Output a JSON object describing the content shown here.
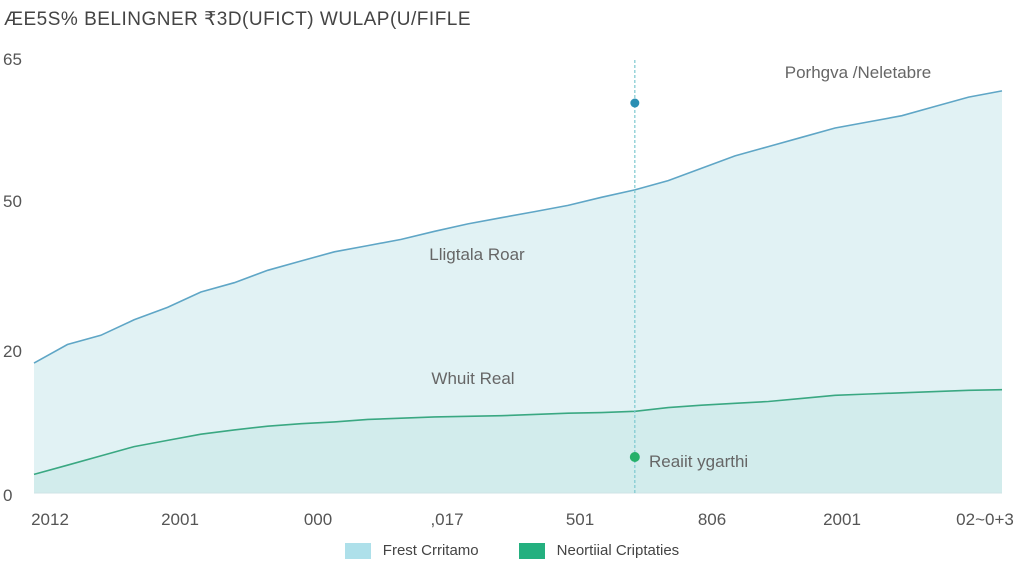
{
  "chart_data": {
    "type": "area",
    "title": "ÆE5S% BELINGNER ₹3D(UFICT) WULAP(U/FIFLE",
    "xlabel": "",
    "ylabel": "",
    "y_tick_labels": [
      "0",
      "20",
      "50",
      "65"
    ],
    "x_tick_labels": [
      "2012",
      "2001",
      "000",
      ",017",
      "501",
      "806",
      "2001",
      "02~0+3"
    ],
    "series": [
      {
        "name": "Frest Crritamo",
        "color": "#5fa6c6",
        "fill": "#e1f2f4",
        "values": [
          21,
          24,
          25.5,
          28,
          30,
          32.5,
          34,
          36,
          37.5,
          39,
          40,
          41,
          42.3,
          43.5,
          44.5,
          45.5,
          46.5,
          47.8,
          49,
          50.5,
          52.5,
          54.5,
          56,
          57.5,
          59,
          60,
          61,
          62.5,
          64,
          65
        ]
      },
      {
        "name": "Neortiial Criptaties",
        "color": "#3aa882",
        "fill": "#d2ecec",
        "values": [
          3,
          4.5,
          6,
          7.5,
          8.5,
          9.5,
          10.2,
          10.8,
          11.2,
          11.5,
          11.9,
          12.1,
          12.3,
          12.4,
          12.5,
          12.7,
          12.9,
          13,
          13.2,
          13.8,
          14.2,
          14.5,
          14.8,
          15.3,
          15.8,
          16,
          16.2,
          16.4,
          16.6,
          16.7
        ]
      }
    ],
    "marker_index": 18,
    "annotations": [
      {
        "text": "Lligtala Roar",
        "series": 0
      },
      {
        "text": "Whuit Real",
        "series": 1
      },
      {
        "text": "Porhgva /Neletabre",
        "series": 0
      },
      {
        "text": "Reaiit ygarthi",
        "series": 1
      }
    ]
  }
}
